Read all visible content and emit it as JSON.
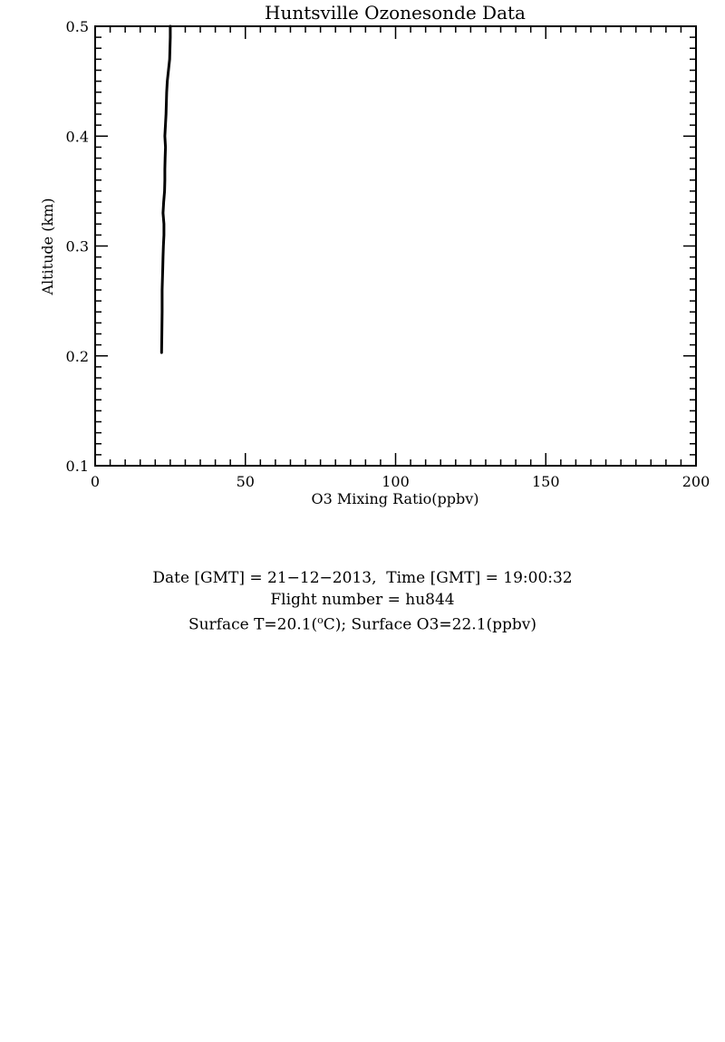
{
  "chart_data": {
    "type": "line",
    "title": "Huntsville Ozonesonde Data",
    "xlabel": "O3 Mixing Ratio(ppbv)",
    "ylabel": "Altitude (km)",
    "xlim": [
      0,
      200
    ],
    "ylim": [
      0.1,
      0.5
    ],
    "x_ticks": [
      0,
      50,
      100,
      150,
      200
    ],
    "x_tick_labels": [
      "0",
      "50",
      "100",
      "150",
      "200"
    ],
    "y_ticks": [
      0.1,
      0.2,
      0.3,
      0.4,
      0.5
    ],
    "y_tick_labels": [
      "0.1",
      "0.2",
      "0.3",
      "0.4",
      "0.5"
    ],
    "grid": false,
    "line_color": "#000000",
    "series": [
      {
        "x": [
          22.1,
          22.2,
          22.3,
          22.3,
          22.5,
          22.6,
          22.7,
          22.9,
          22.9,
          22.6,
          22.8,
          23.1,
          23.2,
          23.2,
          23.3,
          23.4,
          23.2,
          23.6,
          23.8,
          24.0,
          24.4,
          24.8,
          25.0,
          25.0
        ],
        "y": [
          0.203,
          0.22,
          0.24,
          0.26,
          0.28,
          0.29,
          0.3,
          0.31,
          0.32,
          0.33,
          0.34,
          0.35,
          0.36,
          0.37,
          0.38,
          0.39,
          0.4,
          0.42,
          0.44,
          0.45,
          0.46,
          0.47,
          0.49,
          0.5
        ]
      }
    ]
  },
  "info": {
    "line1": "Date [GMT] = 21−12−2013,  Time [GMT] = 19:00:32",
    "line2": "Flight number = hu844",
    "line3_prefix": "Surface T=20.1(",
    "line3_sup": "o",
    "line3_suffix": "C); Surface O3=22.1(ppbv)"
  }
}
